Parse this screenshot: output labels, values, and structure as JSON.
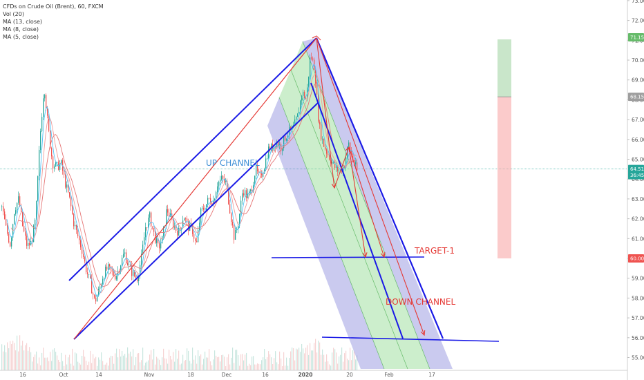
{
  "legend": {
    "symbol_line": "CFDs on Crude Oil (Brent), 60, FXCM",
    "vol_line": "Vol (20)",
    "ma13_line": "MA (13, close)",
    "ma8_line": "MA (8, close)",
    "ma5_line": "MA (5, close)"
  },
  "annotations": {
    "up_channel": "UP CHANNEL",
    "down_channel": "DOWN CHANNEL",
    "target": "TARGET-1"
  },
  "price_tags": [
    {
      "value": "71.15",
      "price": 71.15,
      "color": "#66bb6a"
    },
    {
      "value": "68.15",
      "price": 68.15,
      "color": "#9e9e9e"
    },
    {
      "value": "64.51",
      "price": 64.51,
      "color": "#26a69a"
    },
    {
      "value": "36:45",
      "price": 64.2,
      "color": "#26a69a"
    },
    {
      "value": "60.00",
      "price": 60.0,
      "color": "#ef5350"
    }
  ],
  "chart_data": {
    "type": "line",
    "ylim": [
      54.5,
      73.0
    ],
    "y_ticks": [
      "55.00",
      "56.00",
      "57.00",
      "58.00",
      "59.00",
      "60.00",
      "61.00",
      "62.00",
      "63.00",
      "64.00",
      "65.00",
      "66.00",
      "67.00",
      "68.00",
      "69.00",
      "70.00",
      "71.00",
      "72.00",
      "73.00"
    ],
    "x_ticks": [
      {
        "label": "16",
        "bold": false
      },
      {
        "label": "Oct",
        "bold": false
      },
      {
        "label": "14",
        "bold": false
      },
      {
        "label": "Nov",
        "bold": false
      },
      {
        "label": "18",
        "bold": false
      },
      {
        "label": "Dec",
        "bold": false
      },
      {
        "label": "16",
        "bold": false
      },
      {
        "label": "2020",
        "bold": true
      },
      {
        "label": "20",
        "bold": false
      },
      {
        "label": "Feb",
        "bold": false
      },
      {
        "label": "17",
        "bold": false
      }
    ],
    "current_price": 64.51,
    "colors": {
      "up_candle": "#26a69a",
      "down_candle": "#ef5350",
      "ma13": "#e57373",
      "ma8": "#ef9a9a",
      "ma5": "#4fc3f7",
      "channel": "#1a1ae6",
      "arrow": "#e53935"
    },
    "series": [
      {
        "name": "",
        "values": [
          62.6,
          61.5,
          60.7,
          62.5,
          63.0,
          61.5,
          60.6,
          60.8,
          62.0,
          66.0,
          68.8,
          66.5,
          64.8,
          64.6,
          64.8,
          63.8,
          63.0,
          61.8,
          61.1,
          60.4,
          59.4,
          58.7,
          57.8,
          58.4,
          59.2,
          59.5,
          59.3,
          59.1,
          59.7,
          60.3,
          59.6,
          59.2,
          59.0,
          60.0,
          61.6,
          62.1,
          61.2,
          60.5,
          61.0,
          62.5,
          62.0,
          61.5,
          61.3,
          62.2,
          61.6,
          61.5,
          60.6,
          62.3,
          62.6,
          63.0,
          62.9,
          63.8,
          64.0,
          63.8,
          62.4,
          61.0,
          61.9,
          63.5,
          63.1,
          63.4,
          64.5,
          64.0,
          64.6,
          65.5,
          65.6,
          65.9,
          65.6,
          66.1,
          66.4,
          66.6,
          67.2,
          68.4,
          68.0,
          70.3,
          69.6,
          66.7,
          65.8,
          65.3,
          64.9,
          64.5,
          64.4,
          64.7,
          65.8,
          65.0,
          64.4
        ]
      }
    ]
  }
}
